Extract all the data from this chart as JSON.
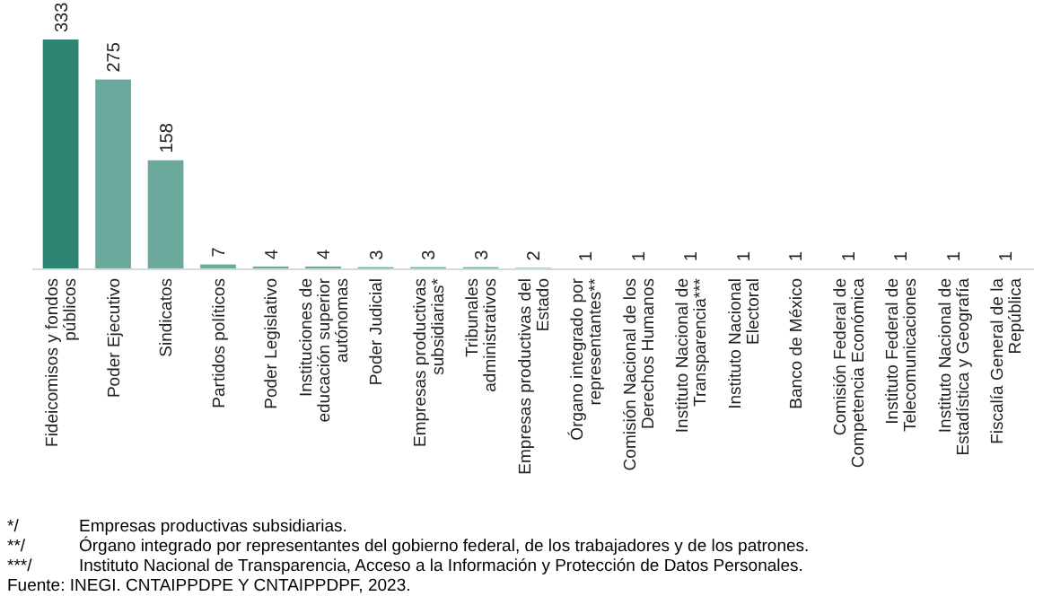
{
  "chart_data": {
    "type": "bar",
    "categories": [
      "Fideicomisos y fondos públicos",
      "Poder Ejecutivo",
      "Sindicatos",
      "Partidos políticos",
      "Poder Legislativo",
      "Instituciones de educación superior autónomas",
      "Poder Judicial",
      "Empresas productivas subsidiarias*",
      "Tribunales administrativos",
      "Empresas productivas del Estado",
      "Órgano integrado por representantes**",
      "Comisión Nacional de los Derechos Humanos",
      "Instituto Nacional de Transparencia***",
      "Instituto Nacional Electoral",
      "Banco de México",
      "Comisión Federal de Competencia Económica",
      "Instituto Federal de Telecomunicaciones",
      "Instituto Nacional de Estadística y Geografía",
      "Fiscalía General de la República"
    ],
    "values": [
      333,
      275,
      158,
      7,
      4,
      4,
      3,
      3,
      3,
      2,
      1,
      1,
      1,
      1,
      1,
      1,
      1,
      1,
      1
    ],
    "colors": [
      "#2e8571",
      "#6aa99b",
      "#6aa99b",
      "#6aa99b",
      "#6aa99b",
      "#6aa99b",
      "#6aa99b",
      "#6aa99b",
      "#6aa99b",
      "#6aa99b",
      "#6aa99b",
      "#6aa99b",
      "#6aa99b",
      "#6aa99b",
      "#6aa99b",
      "#6aa99b",
      "#6aa99b",
      "#6aa99b",
      "#6aa99b"
    ],
    "data_labels": true,
    "annotations": [
      "*/ Empresas productivas subsidiarias.",
      "**/ Órgano integrado por representantes del gobierno federal, de los trabajadores y de los patrones.",
      "***/ Instituto Nacional de Transparencia, Acceso a la Información y Protección de Datos Personales.",
      "Fuente: INEGI. CNTAIPPDPE Y CNTAIPPDPF, 2023."
    ]
  }
}
